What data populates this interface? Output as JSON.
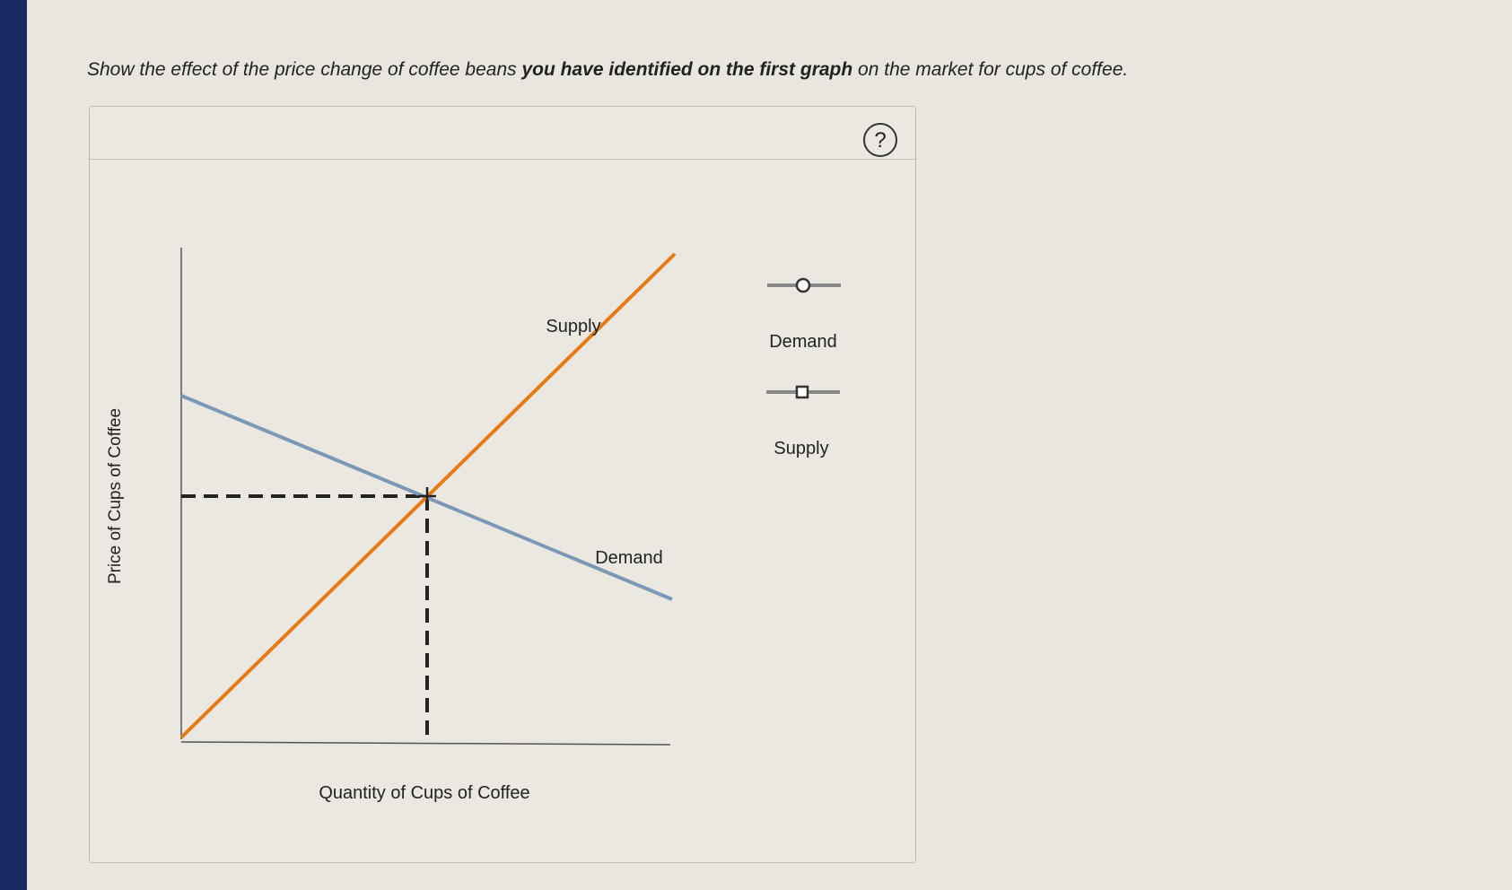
{
  "prompt": {
    "part1": "Show the effect of the price change of coffee beans",
    "bold": "you have identified on the first graph",
    "part2": "on the market for cups of coffee."
  },
  "help": "?",
  "graph": {
    "y_label": "Price of Cups of Coffee",
    "x_label": "Quantity of Cups of Coffee",
    "supply_label": "Supply",
    "demand_label": "Demand"
  },
  "palette": {
    "tools": [
      {
        "label": "Demand"
      },
      {
        "label": "Supply"
      }
    ]
  }
}
